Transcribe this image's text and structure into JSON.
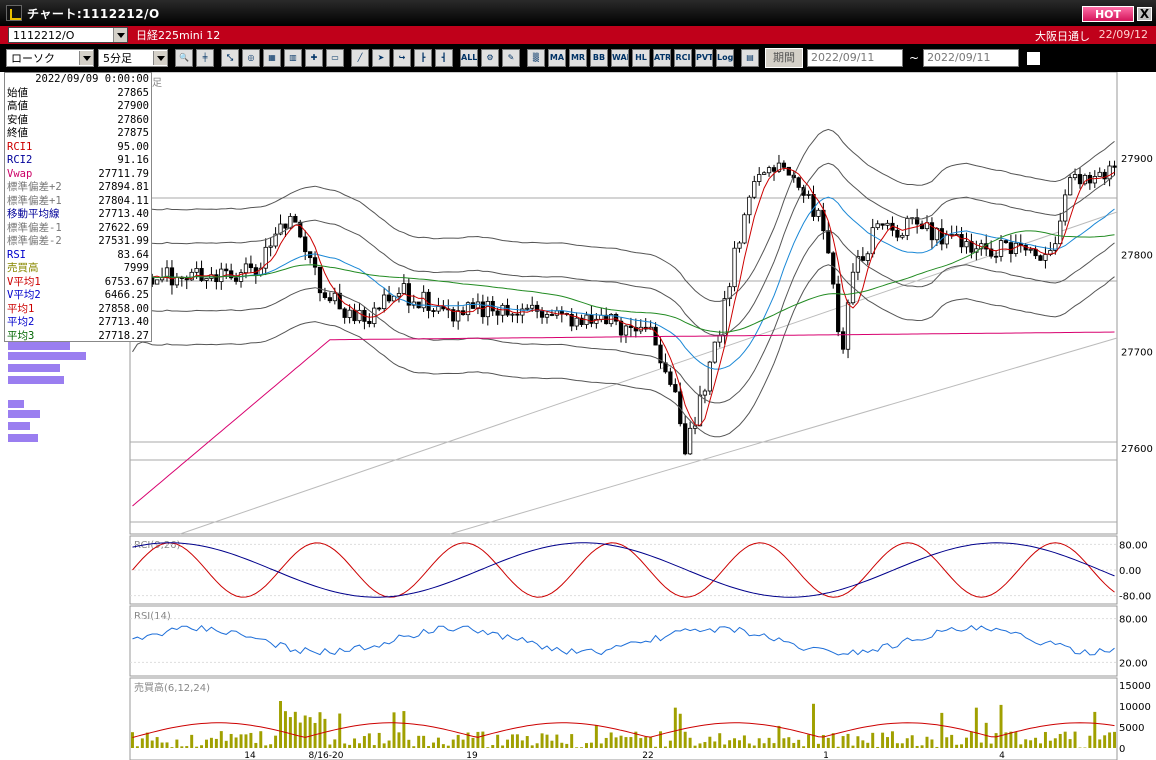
{
  "window": {
    "title": "チャート:1112212/O",
    "hot_label": "HOT",
    "close_label": "X"
  },
  "symbol": {
    "code": "1112212/O",
    "name": "日経225mini 12",
    "market": "大阪日通し",
    "date": "22/09/12"
  },
  "toolbar": {
    "chart_type": "ローソク",
    "interval": "5分足",
    "period_label": "期間",
    "date_from": "2022/09/11",
    "date_to": "2022/09/11",
    "tilde": "~",
    "buttons": [
      "zoom-in",
      "crosshair",
      "trend",
      "magnify",
      "chart",
      "bars",
      "plus",
      "mini",
      "line-tool",
      "cursor",
      "arrow",
      "candle-a",
      "candle-b",
      "ALL",
      "config",
      "wrench",
      "palette",
      "MA",
      "MR",
      "BB",
      "WAE",
      "HL",
      "ATR",
      "RCI",
      "PVT",
      "Log",
      "export"
    ]
  },
  "info_panel": {
    "timestamp": "2022/09/09 0:00:00",
    "rows": [
      {
        "label": "始値",
        "value": "27865",
        "color": "#000000"
      },
      {
        "label": "高値",
        "value": "27900",
        "color": "#000000"
      },
      {
        "label": "安値",
        "value": "27860",
        "color": "#000000"
      },
      {
        "label": "終値",
        "value": "27875",
        "color": "#000000"
      },
      {
        "label": "RCI1",
        "value": "95.00",
        "color": "#cc0000"
      },
      {
        "label": "RCI2",
        "value": "91.16",
        "color": "#000099"
      },
      {
        "label": "Vwap",
        "value": "27711.79",
        "color": "#cc0066"
      },
      {
        "label": "標準偏差+2",
        "value": "27894.81",
        "color": "#777777"
      },
      {
        "label": "標準偏差+1",
        "value": "27804.11",
        "color": "#777777"
      },
      {
        "label": "移動平均線",
        "value": "27713.40",
        "color": "#000099"
      },
      {
        "label": "標準偏差-1",
        "value": "27622.69",
        "color": "#777777"
      },
      {
        "label": "標準偏差-2",
        "value": "27531.99",
        "color": "#777777"
      },
      {
        "label": "RSI",
        "value": "83.64",
        "color": "#0000cc"
      },
      {
        "label": "売買高",
        "value": "7999",
        "color": "#888800"
      },
      {
        "label": "V平均1",
        "value": "6753.67",
        "color": "#cc0000"
      },
      {
        "label": "V平均2",
        "value": "6466.25",
        "color": "#0000cc"
      },
      {
        "label": "平均1",
        "value": "27858.00",
        "color": "#cc0000"
      },
      {
        "label": "平均2",
        "value": "27713.40",
        "color": "#0000cc"
      },
      {
        "label": "平均3",
        "value": "27718.27",
        "color": "#006600"
      }
    ]
  },
  "chart": {
    "main_label": "足",
    "price_axis": [
      "27900",
      "27800",
      "27700",
      "27600"
    ],
    "rci_label": "RCI(9,26)",
    "rci_axis": [
      "80.00",
      "0.00",
      "-80.00"
    ],
    "rsi_label": "RSI(14)",
    "rsi_axis": [
      "80.00",
      "20.00"
    ],
    "vol_label": "売買高(6,12,24)",
    "vol_axis": [
      "15000",
      "10000",
      "5000",
      "0"
    ],
    "x_labels": [
      "14",
      "8/16-20",
      "19",
      "22",
      "1",
      "4"
    ],
    "colors": {
      "up": "#ffffff",
      "down": "#000000",
      "ma_short": "#cc0000",
      "ma_mid": "#1a88d6",
      "ma_long": "#228b22",
      "vwap": "#d8006f",
      "band": "#555555",
      "rci_fast": "#cc0000",
      "rci_slow": "#00008b",
      "rsi": "#1e6fd9",
      "volume": "#a0a000",
      "volume_profile": "#9a7ef0"
    }
  }
}
